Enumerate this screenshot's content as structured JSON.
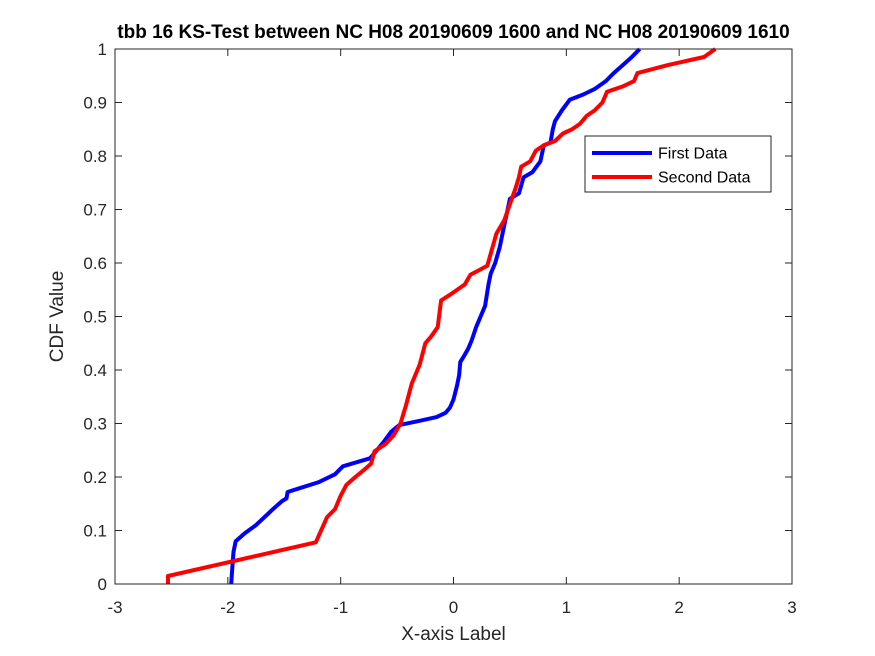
{
  "chart_data": {
    "type": "line",
    "title": "tbb 16 KS-Test between NC H08 20190609 1600 and NC H08 20190609 1610",
    "xlabel": "X-axis Label",
    "ylabel": "CDF Value",
    "xlim": [
      -3,
      3
    ],
    "ylim": [
      0,
      1
    ],
    "xticks": [
      "-3",
      "-2",
      "-1",
      "0",
      "1",
      "2",
      "3"
    ],
    "yticks": [
      "0",
      "0.1",
      "0.2",
      "0.3",
      "0.4",
      "0.5",
      "0.6",
      "0.7",
      "0.8",
      "0.9",
      "1"
    ],
    "grid": false,
    "legend_position": "top-right",
    "series": [
      {
        "name": "First Data",
        "color": "#0000ff",
        "points": [
          [
            -1.97,
            0.0
          ],
          [
            -1.96,
            0.03
          ],
          [
            -1.95,
            0.06
          ],
          [
            -1.93,
            0.08
          ],
          [
            -1.85,
            0.095
          ],
          [
            -1.75,
            0.11
          ],
          [
            -1.65,
            0.13
          ],
          [
            -1.6,
            0.14
          ],
          [
            -1.52,
            0.155
          ],
          [
            -1.48,
            0.16
          ],
          [
            -1.47,
            0.172
          ],
          [
            -1.35,
            0.18
          ],
          [
            -1.2,
            0.19
          ],
          [
            -1.05,
            0.205
          ],
          [
            -0.98,
            0.22
          ],
          [
            -0.82,
            0.23
          ],
          [
            -0.74,
            0.235
          ],
          [
            -0.68,
            0.25
          ],
          [
            -0.62,
            0.265
          ],
          [
            -0.55,
            0.285
          ],
          [
            -0.48,
            0.297
          ],
          [
            -0.3,
            0.305
          ],
          [
            -0.15,
            0.312
          ],
          [
            -0.07,
            0.32
          ],
          [
            -0.03,
            0.33
          ],
          [
            0.0,
            0.345
          ],
          [
            0.03,
            0.37
          ],
          [
            0.05,
            0.39
          ],
          [
            0.06,
            0.415
          ],
          [
            0.09,
            0.425
          ],
          [
            0.13,
            0.44
          ],
          [
            0.16,
            0.455
          ],
          [
            0.2,
            0.48
          ],
          [
            0.24,
            0.5
          ],
          [
            0.28,
            0.52
          ],
          [
            0.31,
            0.56
          ],
          [
            0.33,
            0.58
          ],
          [
            0.37,
            0.6
          ],
          [
            0.41,
            0.63
          ],
          [
            0.44,
            0.66
          ],
          [
            0.47,
            0.69
          ],
          [
            0.5,
            0.72
          ],
          [
            0.58,
            0.73
          ],
          [
            0.62,
            0.76
          ],
          [
            0.7,
            0.77
          ],
          [
            0.77,
            0.79
          ],
          [
            0.8,
            0.82
          ],
          [
            0.86,
            0.825
          ],
          [
            0.88,
            0.85
          ],
          [
            0.9,
            0.865
          ],
          [
            0.96,
            0.885
          ],
          [
            1.03,
            0.905
          ],
          [
            1.15,
            0.915
          ],
          [
            1.25,
            0.925
          ],
          [
            1.35,
            0.94
          ],
          [
            1.42,
            0.955
          ],
          [
            1.5,
            0.97
          ],
          [
            1.58,
            0.985
          ],
          [
            1.65,
            1.0
          ]
        ]
      },
      {
        "name": "Second Data",
        "color": "#ff0000",
        "points": [
          [
            -2.53,
            0.0
          ],
          [
            -2.53,
            0.015
          ],
          [
            -1.22,
            0.078
          ],
          [
            -1.12,
            0.125
          ],
          [
            -1.05,
            0.14
          ],
          [
            -1.0,
            0.165
          ],
          [
            -0.95,
            0.185
          ],
          [
            -0.87,
            0.2
          ],
          [
            -0.8,
            0.212
          ],
          [
            -0.73,
            0.225
          ],
          [
            -0.7,
            0.248
          ],
          [
            -0.6,
            0.262
          ],
          [
            -0.53,
            0.278
          ],
          [
            -0.47,
            0.3
          ],
          [
            -0.42,
            0.335
          ],
          [
            -0.37,
            0.375
          ],
          [
            -0.3,
            0.41
          ],
          [
            -0.25,
            0.45
          ],
          [
            -0.2,
            0.462
          ],
          [
            -0.14,
            0.48
          ],
          [
            -0.11,
            0.53
          ],
          [
            0.0,
            0.545
          ],
          [
            0.1,
            0.56
          ],
          [
            0.15,
            0.578
          ],
          [
            0.3,
            0.595
          ],
          [
            0.38,
            0.655
          ],
          [
            0.45,
            0.68
          ],
          [
            0.5,
            0.71
          ],
          [
            0.55,
            0.74
          ],
          [
            0.58,
            0.76
          ],
          [
            0.6,
            0.78
          ],
          [
            0.68,
            0.79
          ],
          [
            0.73,
            0.81
          ],
          [
            0.8,
            0.82
          ],
          [
            0.9,
            0.828
          ],
          [
            0.97,
            0.842
          ],
          [
            1.05,
            0.85
          ],
          [
            1.12,
            0.86
          ],
          [
            1.18,
            0.875
          ],
          [
            1.25,
            0.885
          ],
          [
            1.32,
            0.9
          ],
          [
            1.36,
            0.92
          ],
          [
            1.5,
            0.93
          ],
          [
            1.6,
            0.94
          ],
          [
            1.63,
            0.955
          ],
          [
            1.9,
            0.97
          ],
          [
            2.22,
            0.985
          ],
          [
            2.32,
            1.0
          ]
        ]
      }
    ]
  }
}
